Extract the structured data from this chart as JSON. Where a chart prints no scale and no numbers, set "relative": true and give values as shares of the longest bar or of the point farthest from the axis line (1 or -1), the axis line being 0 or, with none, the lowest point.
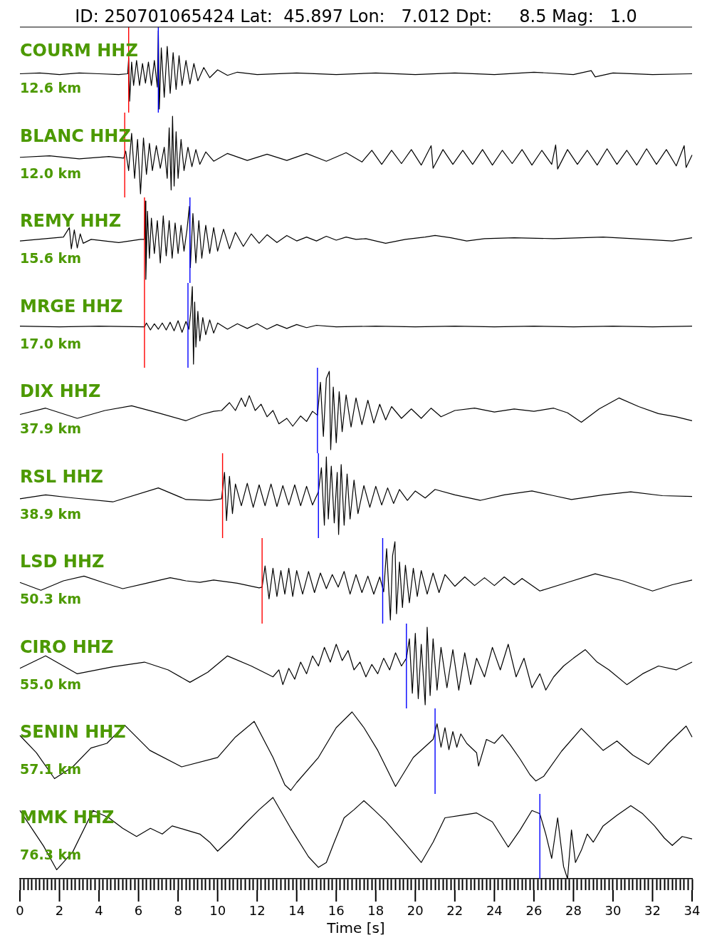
{
  "chart_data": [
    {
      "type": "line",
      "title": "ID: 250701065424 Lat:  45.897 Lon:   7.012 Dpt:     8.5 Mag:   1.0",
      "annotations": [
        "COURM HHZ",
        "12.6 km"
      ],
      "color": "#000000",
      "relative": true,
      "xlim": [
        0,
        34
      ],
      "tick_labels": false,
      "ref_lines": [
        {
          "axis": "x",
          "value": 5.5,
          "color": "#ff0000"
        },
        {
          "axis": "x",
          "value": 7.0,
          "color": "#0000ff"
        }
      ],
      "x": [
        0,
        1,
        2,
        3,
        4,
        5,
        5.45,
        5.5,
        5.55,
        5.65,
        5.75,
        5.9,
        6.05,
        6.2,
        6.35,
        6.5,
        6.65,
        6.8,
        6.95,
        7.0,
        7.05,
        7.15,
        7.3,
        7.45,
        7.6,
        7.75,
        7.9,
        8.05,
        8.2,
        8.4,
        8.6,
        8.8,
        9.0,
        9.3,
        9.6,
        10.0,
        10.5,
        11,
        12,
        14,
        16,
        18,
        20,
        22,
        24,
        26,
        28,
        28.9,
        29.1,
        30,
        32,
        34
      ],
      "values": [
        0.45,
        0.46,
        0.44,
        0.46,
        0.45,
        0.44,
        0.45,
        0.65,
        0.1,
        0.6,
        0.3,
        0.62,
        0.3,
        0.58,
        0.33,
        0.6,
        0.3,
        0.62,
        0.28,
        1,
        0,
        0.78,
        0.15,
        0.8,
        0.2,
        0.72,
        0.25,
        0.68,
        0.3,
        0.62,
        0.32,
        0.58,
        0.36,
        0.53,
        0.4,
        0.5,
        0.43,
        0.47,
        0.44,
        0.46,
        0.44,
        0.46,
        0.44,
        0.46,
        0.44,
        0.47,
        0.44,
        0.49,
        0.41,
        0.46,
        0.44,
        0.45
      ]
    },
    {
      "type": "line",
      "annotations": [
        "BLANC HHZ",
        "12.0 km"
      ],
      "color": "#000000",
      "relative": true,
      "xlim": [
        0,
        34
      ],
      "tick_labels": false,
      "ref_lines": [
        {
          "axis": "x",
          "value": 5.3,
          "color": "#ff0000"
        }
      ],
      "x": [
        0,
        1.5,
        3,
        4.5,
        5.25,
        5.35,
        5.5,
        5.65,
        5.8,
        5.95,
        6.1,
        6.25,
        6.4,
        6.55,
        6.7,
        6.9,
        7.1,
        7.3,
        7.45,
        7.55,
        7.65,
        7.72,
        7.8,
        7.9,
        8.0,
        8.15,
        8.3,
        8.5,
        8.7,
        8.9,
        9.1,
        9.4,
        9.8,
        10.5,
        11.5,
        12.5,
        13.5,
        14.5,
        15.5,
        16.5,
        17.3,
        17.8,
        18.3,
        18.8,
        19.3,
        19.8,
        20.3,
        20.8,
        20.9,
        21.4,
        21.9,
        22.4,
        22.9,
        23.4,
        23.9,
        24.4,
        24.9,
        25.4,
        25.9,
        26.4,
        26.9,
        27.1,
        27.2,
        27.7,
        28.2,
        28.7,
        29.2,
        29.7,
        30.2,
        30.7,
        31.2,
        31.7,
        32.2,
        32.7,
        33.2,
        33.6,
        33.7,
        34
      ],
      "values": [
        0.47,
        0.49,
        0.45,
        0.48,
        0.46,
        0.55,
        0.3,
        0.78,
        0.2,
        0.7,
        0,
        0.72,
        0.25,
        0.65,
        0.3,
        0.62,
        0.33,
        0.6,
        0.2,
        0.85,
        0.05,
        1,
        0.1,
        0.8,
        0.2,
        0.7,
        0.3,
        0.6,
        0.35,
        0.57,
        0.38,
        0.54,
        0.42,
        0.52,
        0.43,
        0.51,
        0.43,
        0.52,
        0.42,
        0.53,
        0.41,
        0.56,
        0.38,
        0.56,
        0.39,
        0.57,
        0.37,
        0.62,
        0.33,
        0.57,
        0.38,
        0.56,
        0.38,
        0.57,
        0.37,
        0.56,
        0.39,
        0.57,
        0.37,
        0.56,
        0.38,
        0.63,
        0.32,
        0.57,
        0.38,
        0.56,
        0.37,
        0.58,
        0.38,
        0.56,
        0.37,
        0.58,
        0.38,
        0.57,
        0.36,
        0.62,
        0.34,
        0.5
      ]
    },
    {
      "type": "line",
      "annotations": [
        "REMY HHZ",
        "15.6 km"
      ],
      "color": "#000000",
      "relative": true,
      "xlim": [
        0,
        34
      ],
      "tick_labels": false,
      "ref_lines": [
        {
          "axis": "x",
          "value": 6.3,
          "color": "#ff0000"
        },
        {
          "axis": "x",
          "value": 8.6,
          "color": "#0000ff"
        }
      ],
      "x": [
        0,
        1.3,
        2.2,
        2.5,
        2.6,
        2.75,
        2.9,
        3.05,
        3.2,
        3.6,
        5,
        6.1,
        6.3,
        6.34,
        6.37,
        6.45,
        6.55,
        6.65,
        6.8,
        6.95,
        7.1,
        7.25,
        7.4,
        7.55,
        7.7,
        7.85,
        8.0,
        8.15,
        8.3,
        8.45,
        8.57,
        8.62,
        8.75,
        8.9,
        9.05,
        9.2,
        9.4,
        9.6,
        9.8,
        10.0,
        10.3,
        10.6,
        10.9,
        11.3,
        11.7,
        12.1,
        12.5,
        13,
        13.5,
        14,
        14.5,
        15,
        15.5,
        16,
        16.5,
        17,
        17.5,
        18.5,
        19.5,
        20.5,
        21,
        21.8,
        22.6,
        23.5,
        25,
        27,
        29.5,
        31,
        33,
        34
      ],
      "values": [
        0.49,
        0.52,
        0.54,
        0.66,
        0.39,
        0.63,
        0.4,
        0.58,
        0.46,
        0.51,
        0.47,
        0.51,
        0.51,
        1,
        0,
        0.87,
        0.27,
        0.78,
        0.33,
        0.75,
        0.21,
        0.81,
        0.3,
        0.75,
        0.27,
        0.72,
        0.33,
        0.69,
        0.36,
        0.63,
        0.93,
        0.15,
        0.84,
        0.21,
        0.75,
        0.27,
        0.69,
        0.33,
        0.66,
        0.36,
        0.64,
        0.39,
        0.6,
        0.42,
        0.58,
        0.46,
        0.57,
        0.47,
        0.56,
        0.49,
        0.54,
        0.49,
        0.55,
        0.5,
        0.54,
        0.51,
        0.52,
        0.46,
        0.51,
        0.54,
        0.56,
        0.53,
        0.49,
        0.52,
        0.53,
        0.52,
        0.54,
        0.52,
        0.49,
        0.53
      ]
    },
    {
      "type": "line",
      "annotations": [
        "MRGE HHZ",
        "17.0 km"
      ],
      "color": "#000000",
      "relative": true,
      "xlim": [
        0,
        34
      ],
      "tick_labels": false,
      "ref_lines": [
        {
          "axis": "x",
          "value": 6.3,
          "color": "#ff0000"
        },
        {
          "axis": "x",
          "value": 8.5,
          "color": "#0000ff"
        }
      ],
      "x": [
        0,
        2,
        4,
        6.3,
        6.4,
        6.6,
        6.8,
        7.0,
        7.2,
        7.4,
        7.6,
        7.8,
        8.0,
        8.2,
        8.4,
        8.55,
        8.65,
        8.72,
        8.78,
        8.84,
        8.9,
        9.0,
        9.1,
        9.25,
        9.4,
        9.6,
        9.8,
        10.0,
        10.5,
        11,
        11.5,
        12,
        12.5,
        13,
        13.5,
        14,
        14.5,
        15,
        16,
        18,
        20,
        22,
        24,
        26,
        28,
        30,
        32,
        34
      ],
      "values": [
        0.49,
        0.48,
        0.49,
        0.48,
        0.53,
        0.44,
        0.52,
        0.45,
        0.53,
        0.44,
        0.54,
        0.43,
        0.56,
        0.41,
        0.55,
        0.45,
        0.7,
        1,
        0,
        0.8,
        0.22,
        0.68,
        0.3,
        0.6,
        0.38,
        0.57,
        0.4,
        0.53,
        0.45,
        0.52,
        0.46,
        0.52,
        0.45,
        0.51,
        0.46,
        0.51,
        0.47,
        0.5,
        0.48,
        0.49,
        0.48,
        0.49,
        0.48,
        0.49,
        0.48,
        0.49,
        0.48,
        0.49
      ]
    },
    {
      "type": "line",
      "annotations": [
        "DIX HHZ",
        "37.9 km"
      ],
      "color": "#000000",
      "relative": true,
      "xlim": [
        0,
        34
      ],
      "tick_labels": false,
      "ref_lines": [
        {
          "axis": "x",
          "value": 15.05,
          "color": "#0000ff"
        }
      ],
      "x": [
        0,
        1.3,
        2.9,
        4.3,
        5.65,
        7.0,
        8.4,
        9.2,
        9.8,
        10.2,
        10.6,
        10.9,
        11.2,
        11.4,
        11.6,
        11.9,
        12.2,
        12.5,
        12.8,
        13.1,
        13.5,
        13.8,
        14.2,
        14.5,
        14.8,
        15.05,
        15.2,
        15.35,
        15.5,
        15.65,
        15.72,
        15.85,
        16.0,
        16.15,
        16.3,
        16.5,
        16.75,
        17.0,
        17.3,
        17.6,
        17.9,
        18.2,
        18.5,
        18.8,
        19.3,
        19.8,
        20.3,
        20.8,
        21.3,
        22,
        23,
        24,
        25,
        26,
        27,
        27.7,
        28.4,
        29.3,
        30.3,
        31.3,
        32.3,
        33.2,
        34
      ],
      "values": [
        0.45,
        0.53,
        0.4,
        0.5,
        0.56,
        0.47,
        0.37,
        0.45,
        0.49,
        0.5,
        0.6,
        0.5,
        0.66,
        0.55,
        0.69,
        0.5,
        0.58,
        0.42,
        0.5,
        0.33,
        0.4,
        0.3,
        0.43,
        0.36,
        0.49,
        0.44,
        0.86,
        0.17,
        0.91,
        1,
        0,
        0.8,
        0.09,
        0.74,
        0.23,
        0.7,
        0.29,
        0.66,
        0.32,
        0.63,
        0.34,
        0.58,
        0.38,
        0.55,
        0.4,
        0.52,
        0.4,
        0.53,
        0.42,
        0.5,
        0.53,
        0.48,
        0.52,
        0.49,
        0.53,
        0.47,
        0.35,
        0.52,
        0.66,
        0.55,
        0.46,
        0.42,
        0.37
      ]
    },
    {
      "type": "line",
      "annotations": [
        "RSL HHZ",
        "38.9 km"
      ],
      "color": "#000000",
      "relative": true,
      "xlim": [
        0,
        34
      ],
      "tick_labels": false,
      "ref_lines": [
        {
          "axis": "x",
          "value": 10.25,
          "color": "#ff0000"
        },
        {
          "axis": "x",
          "value": 15.1,
          "color": "#0000ff"
        }
      ],
      "x": [
        0,
        1.3,
        2.7,
        4.7,
        7.0,
        8.4,
        9.6,
        10.2,
        10.35,
        10.45,
        10.6,
        10.75,
        10.9,
        11.2,
        11.5,
        11.8,
        12.1,
        12.4,
        12.7,
        13.0,
        13.3,
        13.6,
        13.9,
        14.2,
        14.5,
        14.8,
        15.1,
        15.25,
        15.4,
        15.5,
        15.6,
        15.75,
        15.9,
        16.05,
        16.12,
        16.25,
        16.4,
        16.55,
        16.7,
        16.9,
        17.1,
        17.4,
        17.7,
        18.0,
        18.3,
        18.6,
        18.9,
        19.2,
        19.6,
        20.0,
        20.5,
        21.0,
        22.0,
        23.3,
        24.5,
        25.9,
        27.0,
        27.9,
        29.5,
        30.9,
        32.5,
        34
      ],
      "values": [
        0.46,
        0.51,
        0.47,
        0.42,
        0.6,
        0.45,
        0.44,
        0.46,
        0.8,
        0.18,
        0.75,
        0.27,
        0.65,
        0.37,
        0.66,
        0.35,
        0.64,
        0.37,
        0.65,
        0.36,
        0.63,
        0.38,
        0.64,
        0.37,
        0.62,
        0.38,
        0.55,
        0.86,
        0.12,
        1,
        0.2,
        0.88,
        0.15,
        0.8,
        0,
        0.9,
        0.12,
        0.78,
        0.2,
        0.7,
        0.27,
        0.63,
        0.35,
        0.62,
        0.38,
        0.6,
        0.4,
        0.58,
        0.44,
        0.56,
        0.47,
        0.58,
        0.51,
        0.44,
        0.51,
        0.56,
        0.5,
        0.45,
        0.51,
        0.55,
        0.5,
        0.49
      ]
    },
    {
      "type": "line",
      "annotations": [
        "LSD HHZ",
        "50.3 km"
      ],
      "color": "#000000",
      "relative": true,
      "xlim": [
        0,
        34
      ],
      "tick_labels": false,
      "ref_lines": [
        {
          "axis": "x",
          "value": 12.25,
          "color": "#ff0000"
        },
        {
          "axis": "x",
          "value": 18.35,
          "color": "#0000ff"
        }
      ],
      "x": [
        0,
        1.06,
        2.2,
        3.24,
        4.2,
        5.2,
        6.4,
        7.6,
        8.4,
        9.1,
        9.8,
        11,
        12.1,
        12.25,
        12.4,
        12.6,
        12.8,
        13.0,
        13.2,
        13.4,
        13.6,
        13.8,
        14.0,
        14.3,
        14.6,
        14.9,
        15.2,
        15.5,
        15.8,
        16.1,
        16.4,
        16.7,
        17.0,
        17.3,
        17.6,
        17.9,
        18.2,
        18.4,
        18.55,
        18.74,
        18.85,
        18.97,
        19.05,
        19.2,
        19.35,
        19.5,
        19.7,
        19.9,
        20.1,
        20.3,
        20.6,
        20.9,
        21.2,
        21.5,
        22,
        22.5,
        23,
        23.5,
        24,
        24.5,
        25,
        25.4,
        26.3,
        27.7,
        29.1,
        30.5,
        32,
        33,
        34
      ],
      "values": [
        0.48,
        0.38,
        0.5,
        0.56,
        0.48,
        0.4,
        0.47,
        0.54,
        0.5,
        0.48,
        0.51,
        0.47,
        0.41,
        0.42,
        0.69,
        0.27,
        0.66,
        0.3,
        0.63,
        0.33,
        0.66,
        0.3,
        0.63,
        0.33,
        0.62,
        0.35,
        0.6,
        0.4,
        0.58,
        0.42,
        0.62,
        0.33,
        0.58,
        0.35,
        0.56,
        0.33,
        0.55,
        0.36,
        0.91,
        0,
        0.82,
        1,
        0.08,
        0.74,
        0.16,
        0.7,
        0.22,
        0.66,
        0.3,
        0.63,
        0.33,
        0.6,
        0.35,
        0.58,
        0.43,
        0.55,
        0.44,
        0.54,
        0.44,
        0.55,
        0.45,
        0.53,
        0.37,
        0.48,
        0.59,
        0.5,
        0.37,
        0.45,
        0.51
      ]
    },
    {
      "type": "line",
      "annotations": [
        "CIRO HHZ",
        "55.0 km"
      ],
      "color": "#000000",
      "relative": true,
      "xlim": [
        0,
        34
      ],
      "tick_labels": false,
      "ref_lines": [
        {
          "axis": "x",
          "value": 19.55,
          "color": "#0000ff"
        }
      ],
      "x": [
        0,
        1.3,
        2.9,
        4.7,
        6.3,
        7.5,
        8.6,
        9.5,
        10.5,
        11.7,
        12.8,
        13.1,
        13.3,
        13.6,
        13.9,
        14.2,
        14.5,
        14.8,
        15.1,
        15.4,
        15.7,
        16.0,
        16.3,
        16.6,
        16.9,
        17.2,
        17.5,
        17.8,
        18.1,
        18.4,
        18.7,
        19.0,
        19.3,
        19.55,
        19.7,
        19.85,
        20.0,
        20.15,
        20.3,
        20.5,
        20.6,
        20.75,
        20.9,
        21.1,
        21.3,
        21.6,
        21.9,
        22.2,
        22.5,
        22.8,
        23.1,
        23.5,
        23.9,
        24.3,
        24.7,
        25.1,
        25.5,
        25.9,
        26.3,
        26.6,
        27.0,
        27.5,
        28.0,
        28.6,
        29.2,
        29.8,
        30.7,
        31.5,
        32.3,
        33.2,
        34
      ],
      "values": [
        0.47,
        0.63,
        0.4,
        0.49,
        0.55,
        0.45,
        0.29,
        0.42,
        0.63,
        0.5,
        0.36,
        0.45,
        0.26,
        0.47,
        0.33,
        0.55,
        0.4,
        0.63,
        0.5,
        0.74,
        0.55,
        0.78,
        0.57,
        0.7,
        0.45,
        0.55,
        0.36,
        0.52,
        0.4,
        0.6,
        0.45,
        0.67,
        0.5,
        0.6,
        0.85,
        0.15,
        0.92,
        0.08,
        0.78,
        0,
        1,
        0.12,
        0.85,
        0.19,
        0.74,
        0.22,
        0.71,
        0.19,
        0.67,
        0.26,
        0.6,
        0.36,
        0.74,
        0.45,
        0.78,
        0.36,
        0.6,
        0.22,
        0.4,
        0.19,
        0.36,
        0.5,
        0.6,
        0.71,
        0.55,
        0.45,
        0.26,
        0.4,
        0.5,
        0.45,
        0.55
      ]
    },
    {
      "type": "line",
      "annotations": [
        "SENIN HHZ",
        "57.1 km"
      ],
      "color": "#000000",
      "relative": true,
      "xlim": [
        0,
        34
      ],
      "tick_labels": false,
      "ref_lines": [
        {
          "axis": "x",
          "value": 21.0,
          "color": "#0000ff"
        }
      ],
      "x": [
        0,
        0.83,
        1.75,
        2.67,
        3.59,
        4.4,
        5.3,
        6.57,
        8.18,
        10.0,
        10.9,
        11.85,
        12.8,
        13.4,
        13.7,
        14.0,
        15.1,
        16.0,
        16.8,
        17.4,
        18.1,
        19.0,
        19.9,
        20.9,
        21.1,
        21.3,
        21.5,
        21.7,
        21.9,
        22.1,
        22.3,
        22.6,
        23.1,
        23.2,
        23.6,
        24.0,
        24.4,
        24.8,
        25.3,
        25.8,
        26.1,
        26.5,
        27.4,
        28.4,
        29.5,
        30.2,
        31.0,
        31.8,
        32.8,
        33.7,
        34
      ],
      "values": [
        0.7,
        0.48,
        0.15,
        0.3,
        0.54,
        0.6,
        0.83,
        0.51,
        0.3,
        0.42,
        0.68,
        0.88,
        0.42,
        0.07,
        0,
        0.1,
        0.42,
        0.8,
        1,
        0.8,
        0.51,
        0.05,
        0.42,
        0.65,
        0.85,
        0.55,
        0.8,
        0.52,
        0.75,
        0.55,
        0.72,
        0.6,
        0.48,
        0.31,
        0.65,
        0.6,
        0.71,
        0.58,
        0.4,
        0.2,
        0.12,
        0.18,
        0.5,
        0.79,
        0.51,
        0.63,
        0.45,
        0.33,
        0.6,
        0.82,
        0.68
      ]
    },
    {
      "type": "line",
      "annotations": [
        "MMK HHZ",
        "76.3 km"
      ],
      "color": "#000000",
      "relative": true,
      "xlim": [
        0,
        34
      ],
      "tick_labels": "x",
      "xlabel": "Time [s]",
      "ref_lines": [
        {
          "axis": "x",
          "value": 26.3,
          "color": "#0000ff"
        }
      ],
      "x": [
        0,
        0.6,
        1.2,
        1.86,
        2.67,
        3.7,
        4.5,
        5.2,
        5.9,
        6.6,
        7.2,
        7.7,
        8.4,
        9.1,
        9.6,
        10.0,
        10.7,
        11.4,
        12.1,
        12.8,
        13.7,
        14.6,
        15.1,
        15.5,
        15.9,
        16.4,
        16.9,
        17.4,
        17.9,
        18.5,
        19.4,
        20.3,
        20.9,
        21.5,
        22.3,
        23.1,
        23.9,
        24.7,
        25.3,
        25.9,
        26.3,
        26.6,
        26.9,
        27.2,
        27.5,
        27.7,
        27.9,
        28.1,
        28.4,
        28.7,
        29.0,
        29.5,
        30.2,
        30.9,
        31.5,
        32.1,
        32.6,
        33.0,
        33.5,
        34
      ],
      "values": [
        0.84,
        0.62,
        0.4,
        0.11,
        0.33,
        0.84,
        0.75,
        0.62,
        0.52,
        0.62,
        0.55,
        0.65,
        0.6,
        0.55,
        0.45,
        0.34,
        0.5,
        0.68,
        0.85,
        1,
        0.62,
        0.27,
        0.14,
        0.2,
        0.45,
        0.75,
        0.85,
        0.96,
        0.85,
        0.71,
        0.46,
        0.2,
        0.45,
        0.75,
        0.78,
        0.81,
        0.7,
        0.39,
        0.6,
        0.84,
        0.8,
        0.55,
        0.25,
        0.75,
        0.15,
        0,
        0.6,
        0.2,
        0.35,
        0.55,
        0.45,
        0.65,
        0.78,
        0.9,
        0.8,
        0.65,
        0.5,
        0.41,
        0.52,
        0.49
      ],
      "xticks": [
        0,
        {
          "value": 0.2,
          "label": null
        },
        {
          "value": 0.4,
          "label": null
        },
        {
          "value": 0.6,
          "label": null
        },
        {
          "value": 0.8,
          "label": null
        },
        {
          "value": 1,
          "label": null
        },
        {
          "value": 1.2,
          "label": null
        },
        {
          "value": 1.4,
          "label": null
        },
        {
          "value": 1.6,
          "label": null
        },
        {
          "value": 1.8,
          "label": null
        },
        2,
        {
          "value": 2.2,
          "label": null
        },
        {
          "value": 2.4,
          "label": null
        },
        {
          "value": 2.6,
          "label": null
        },
        {
          "value": 2.8,
          "label": null
        },
        {
          "value": 3,
          "label": null
        },
        {
          "value": 3.2,
          "label": null
        },
        {
          "value": 3.4,
          "label": null
        },
        {
          "value": 3.6,
          "label": null
        },
        {
          "value": 3.8,
          "label": null
        },
        4,
        {
          "value": 4.2,
          "label": null
        },
        {
          "value": 4.4,
          "label": null
        },
        {
          "value": 4.6,
          "label": null
        },
        {
          "value": 4.8,
          "label": null
        },
        {
          "value": 5,
          "label": null
        },
        {
          "value": 5.2,
          "label": null
        },
        {
          "value": 5.4,
          "label": null
        },
        {
          "value": 5.6,
          "label": null
        },
        {
          "value": 5.8,
          "label": null
        },
        6,
        {
          "value": 6.2,
          "label": null
        },
        {
          "value": 6.4,
          "label": null
        },
        {
          "value": 6.6,
          "label": null
        },
        {
          "value": 6.8,
          "label": null
        },
        {
          "value": 7,
          "label": null
        },
        {
          "value": 7.2,
          "label": null
        },
        {
          "value": 7.4,
          "label": null
        },
        {
          "value": 7.6,
          "label": null
        },
        {
          "value": 7.8,
          "label": null
        },
        8,
        {
          "value": 8.2,
          "label": null
        },
        {
          "value": 8.4,
          "label": null
        },
        {
          "value": 8.6,
          "label": null
        },
        {
          "value": 8.8,
          "label": null
        },
        {
          "value": 9,
          "label": null
        },
        {
          "value": 9.2,
          "label": null
        },
        {
          "value": 9.4,
          "label": null
        },
        {
          "value": 9.6,
          "label": null
        },
        {
          "value": 9.8,
          "label": null
        },
        10,
        {
          "value": 10.2,
          "label": null
        },
        {
          "value": 10.4,
          "label": null
        },
        {
          "value": 10.6,
          "label": null
        },
        {
          "value": 10.8,
          "label": null
        },
        {
          "value": 11,
          "label": null
        },
        {
          "value": 11.2,
          "label": null
        },
        {
          "value": 11.4,
          "label": null
        },
        {
          "value": 11.6,
          "label": null
        },
        {
          "value": 11.8,
          "label": null
        },
        12,
        {
          "value": 12.2,
          "label": null
        },
        {
          "value": 12.4,
          "label": null
        },
        {
          "value": 12.6,
          "label": null
        },
        {
          "value": 12.8,
          "label": null
        },
        {
          "value": 13,
          "label": null
        },
        {
          "value": 13.2,
          "label": null
        },
        {
          "value": 13.4,
          "label": null
        },
        {
          "value": 13.6,
          "label": null
        },
        {
          "value": 13.8,
          "label": null
        },
        14,
        {
          "value": 14.2,
          "label": null
        },
        {
          "value": 14.4,
          "label": null
        },
        {
          "value": 14.6,
          "label": null
        },
        {
          "value": 14.8,
          "label": null
        },
        {
          "value": 15,
          "label": null
        },
        {
          "value": 15.2,
          "label": null
        },
        {
          "value": 15.4,
          "label": null
        },
        {
          "value": 15.6,
          "label": null
        },
        {
          "value": 15.8,
          "label": null
        },
        16,
        {
          "value": 16.2,
          "label": null
        },
        {
          "value": 16.4,
          "label": null
        },
        {
          "value": 16.6,
          "label": null
        },
        {
          "value": 16.8,
          "label": null
        },
        {
          "value": 17,
          "label": null
        },
        {
          "value": 17.2,
          "label": null
        },
        {
          "value": 17.4,
          "label": null
        },
        {
          "value": 17.6,
          "label": null
        },
        {
          "value": 17.8,
          "label": null
        },
        18,
        {
          "value": 18.2,
          "label": null
        },
        {
          "value": 18.4,
          "label": null
        },
        {
          "value": 18.6,
          "label": null
        },
        {
          "value": 18.8,
          "label": null
        },
        {
          "value": 19,
          "label": null
        },
        {
          "value": 19.2,
          "label": null
        },
        {
          "value": 19.4,
          "label": null
        },
        {
          "value": 19.6,
          "label": null
        },
        {
          "value": 19.8,
          "label": null
        },
        20,
        {
          "value": 20.2,
          "label": null
        },
        {
          "value": 20.4,
          "label": null
        },
        {
          "value": 20.6,
          "label": null
        },
        {
          "value": 20.8,
          "label": null
        },
        {
          "value": 21,
          "label": null
        },
        {
          "value": 21.2,
          "label": null
        },
        {
          "value": 21.4,
          "label": null
        },
        {
          "value": 21.6,
          "label": null
        },
        {
          "value": 21.8,
          "label": null
        },
        22,
        {
          "value": 22.2,
          "label": null
        },
        {
          "value": 22.4,
          "label": null
        },
        {
          "value": 22.6,
          "label": null
        },
        {
          "value": 22.8,
          "label": null
        },
        {
          "value": 23,
          "label": null
        },
        {
          "value": 23.2,
          "label": null
        },
        {
          "value": 23.4,
          "label": null
        },
        {
          "value": 23.6,
          "label": null
        },
        {
          "value": 23.8,
          "label": null
        },
        24,
        {
          "value": 24.2,
          "label": null
        },
        {
          "value": 24.4,
          "label": null
        },
        {
          "value": 24.6,
          "label": null
        },
        {
          "value": 24.8,
          "label": null
        },
        {
          "value": 25,
          "label": null
        },
        {
          "value": 25.2,
          "label": null
        },
        {
          "value": 25.4,
          "label": null
        },
        {
          "value": 25.6,
          "label": null
        },
        {
          "value": 25.8,
          "label": null
        },
        26,
        {
          "value": 26.2,
          "label": null
        },
        {
          "value": 26.4,
          "label": null
        },
        {
          "value": 26.6,
          "label": null
        },
        {
          "value": 26.8,
          "label": null
        },
        {
          "value": 27,
          "label": null
        },
        {
          "value": 27.2,
          "label": null
        },
        {
          "value": 27.4,
          "label": null
        },
        {
          "value": 27.6,
          "label": null
        },
        {
          "value": 27.8,
          "label": null
        },
        28,
        {
          "value": 28.2,
          "label": null
        },
        {
          "value": 28.4,
          "label": null
        },
        {
          "value": 28.6,
          "label": null
        },
        {
          "value": 28.8,
          "label": null
        },
        {
          "value": 29,
          "label": null
        },
        {
          "value": 29.2,
          "label": null
        },
        {
          "value": 29.4,
          "label": null
        },
        {
          "value": 29.6,
          "label": null
        },
        {
          "value": 29.8,
          "label": null
        },
        30,
        {
          "value": 30.2,
          "label": null
        },
        {
          "value": 30.4,
          "label": null
        },
        {
          "value": 30.6,
          "label": null
        },
        {
          "value": 30.8,
          "label": null
        },
        {
          "value": 31,
          "label": null
        },
        {
          "value": 31.2,
          "label": null
        },
        {
          "value": 31.4,
          "label": null
        },
        {
          "value": 31.6,
          "label": null
        },
        {
          "value": 31.8,
          "label": null
        },
        32,
        {
          "value": 32.2,
          "label": null
        },
        {
          "value": 32.4,
          "label": null
        },
        {
          "value": 32.6,
          "label": null
        },
        {
          "value": 32.8,
          "label": null
        },
        {
          "value": 33,
          "label": null
        },
        {
          "value": 33.2,
          "label": null
        },
        {
          "value": 33.4,
          "label": null
        },
        {
          "value": 33.6,
          "label": null
        },
        {
          "value": 33.8,
          "label": null
        },
        34
      ]
    }
  ]
}
